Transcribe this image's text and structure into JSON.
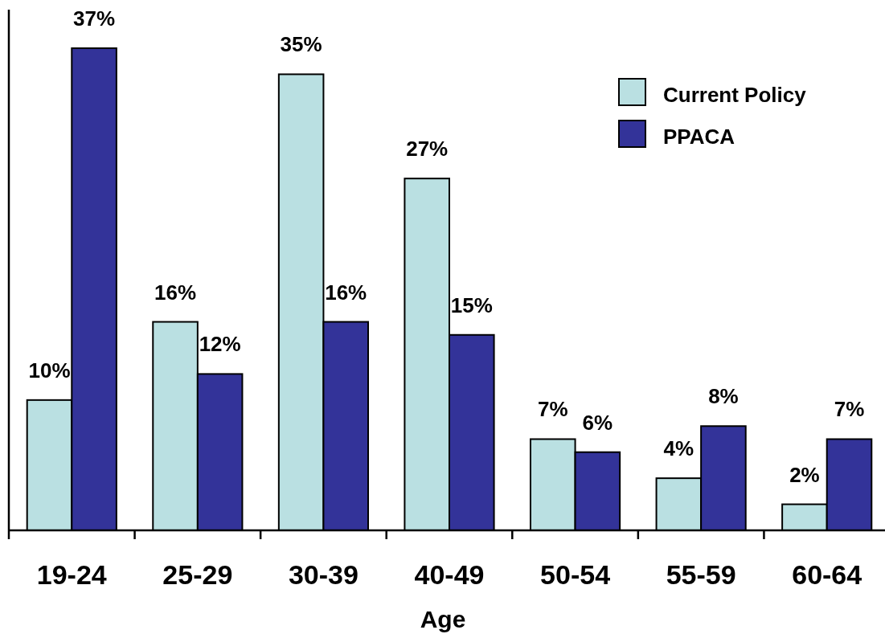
{
  "chart_data": {
    "type": "bar",
    "xlabel": "Age",
    "categories": [
      "19-24",
      "25-29",
      "30-39",
      "40-49",
      "50-54",
      "55-59",
      "60-64"
    ],
    "series": [
      {
        "name": "Current Policy",
        "color": "#bae0e2",
        "values": [
          10,
          16,
          35,
          27,
          7,
          4,
          2
        ],
        "value_labels": [
          "10%",
          "16%",
          "35%",
          "27%",
          "7%",
          "4%",
          "2%"
        ]
      },
      {
        "name": "PPACA",
        "color": "#333399",
        "values": [
          37,
          12,
          16,
          15,
          6,
          8,
          7
        ],
        "value_labels": [
          "37%",
          "12%",
          "16%",
          "15%",
          "6%",
          "8%",
          "7%"
        ]
      }
    ],
    "legend": "top right"
  }
}
